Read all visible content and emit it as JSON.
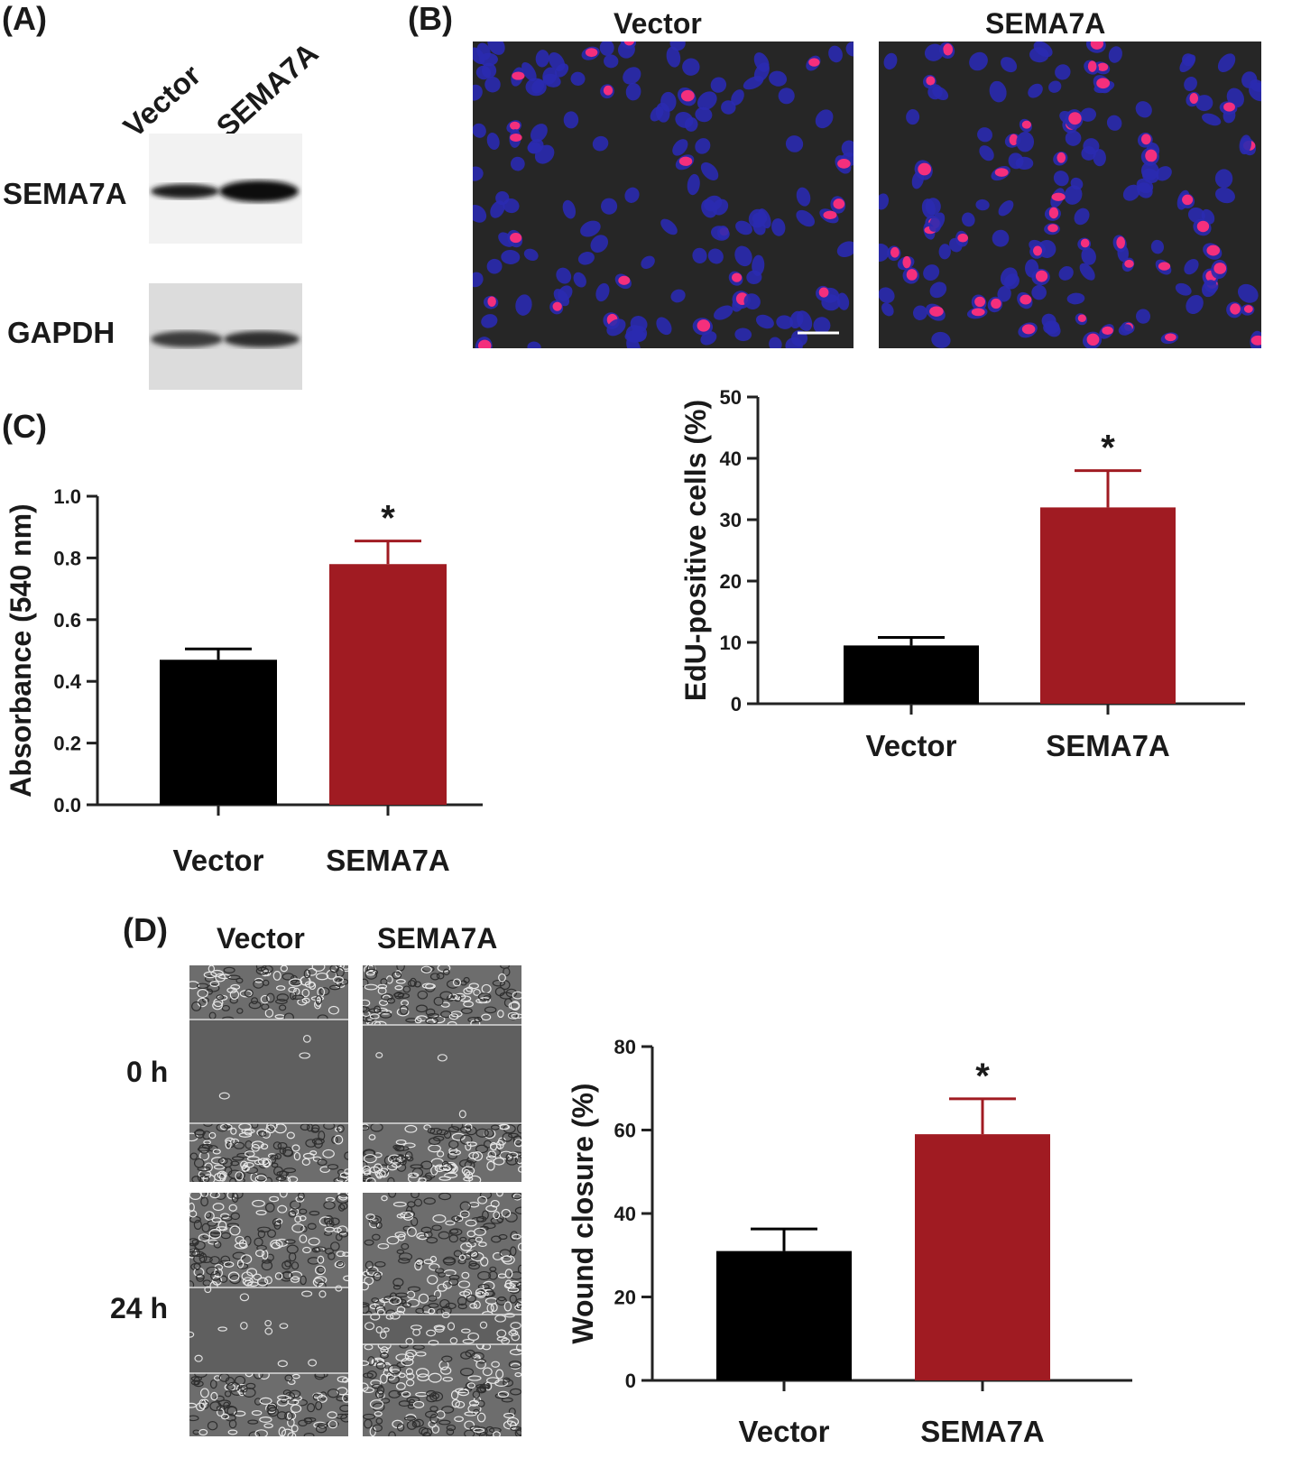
{
  "panels": {
    "A": {
      "letter": "(A)",
      "lanes": [
        "Vector",
        "SEMA7A"
      ],
      "proteins": [
        "SEMA7A",
        "GAPDH"
      ]
    },
    "B": {
      "letter": "(B)",
      "image_labels": [
        "Vector",
        "SEMA7A"
      ]
    },
    "C": {
      "letter": "(C)"
    },
    "D": {
      "letter": "(D)",
      "column_labels": [
        "Vector",
        "SEMA7A"
      ],
      "row_labels": [
        "0 h",
        "24 h"
      ]
    }
  },
  "colors": {
    "vector_bar": "#000000",
    "sema7a_bar": "#a01b22",
    "nucleus": "#2a2ab0",
    "edu": "#ff2f7a",
    "micro_bg": "#262626"
  },
  "chart_data": [
    {
      "id": "edu",
      "type": "bar",
      "categories": [
        "Vector",
        "SEMA7A"
      ],
      "values": [
        9.5,
        32
      ],
      "errors": [
        1.3,
        6
      ],
      "ylabel": "EdU-positive cells (%)",
      "ylim": [
        0,
        50
      ],
      "yticks": [
        0,
        10,
        20,
        30,
        40,
        50
      ],
      "tick_labels": [
        "0",
        "10",
        "20",
        "30",
        "40",
        "50"
      ],
      "significance": "*"
    },
    {
      "id": "absorbance",
      "type": "bar",
      "categories": [
        "Vector",
        "SEMA7A"
      ],
      "values": [
        0.47,
        0.78
      ],
      "errors": [
        0.035,
        0.075
      ],
      "ylabel": "Absorbance (540 nm)",
      "ylim": [
        0,
        1
      ],
      "yticks": [
        0,
        0.2,
        0.4,
        0.6,
        0.8,
        1.0
      ],
      "tick_labels": [
        "0.0",
        "0.2",
        "0.4",
        "0.6",
        "0.8",
        "1.0"
      ],
      "significance": "*"
    },
    {
      "id": "wound",
      "type": "bar",
      "categories": [
        "Vector",
        "SEMA7A"
      ],
      "values": [
        31,
        59
      ],
      "errors": [
        5.3,
        8.5
      ],
      "ylabel": "Wound closure (%)",
      "ylim": [
        0,
        80
      ],
      "yticks": [
        0,
        20,
        40,
        60,
        80
      ],
      "tick_labels": [
        "0",
        "20",
        "40",
        "60",
        "80"
      ],
      "significance": "*"
    }
  ]
}
